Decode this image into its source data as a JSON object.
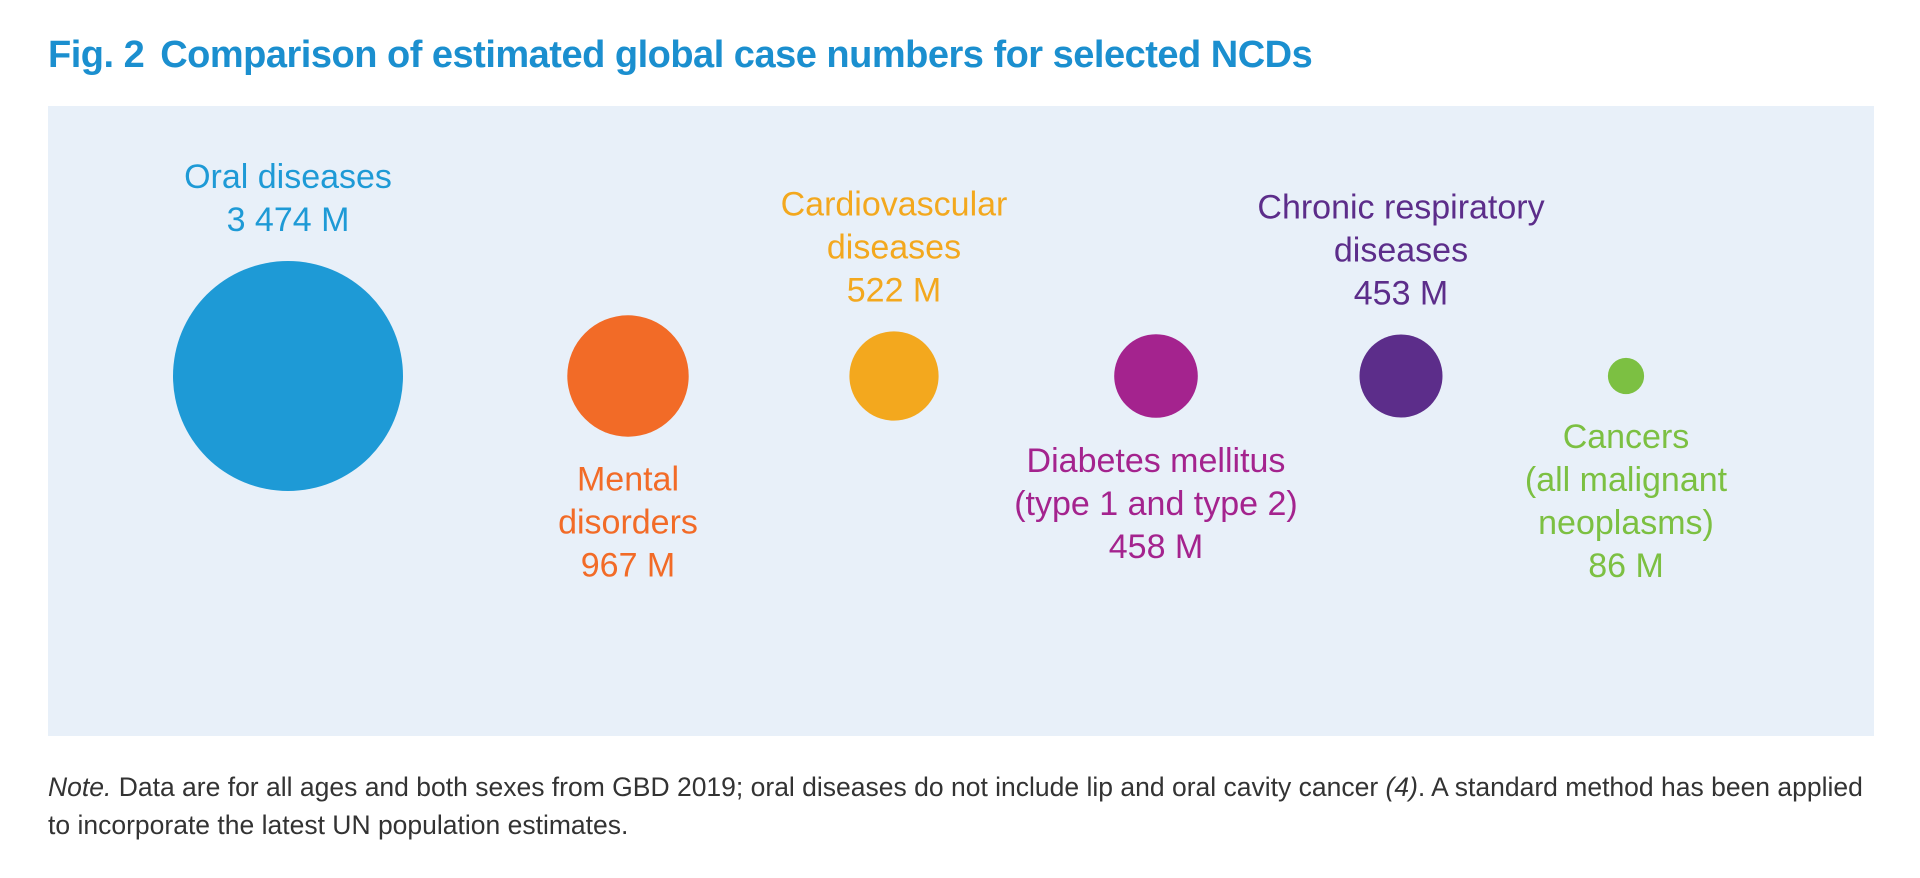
{
  "figure": {
    "number": "Fig. 2",
    "title": "Comparison of estimated global case numbers for selected NCDs"
  },
  "chart_data": {
    "type": "bubble",
    "title": "Comparison of estimated global case numbers for selected NCDs",
    "unit": "M",
    "categories": [
      "Oral diseases",
      "Mental disorders",
      "Cardiovascular diseases",
      "Diabetes mellitus (type 1 and type 2)",
      "Chronic respiratory diseases",
      "Cancers (all malignant neoplasms)"
    ],
    "values": [
      3474,
      967,
      522,
      458,
      453,
      86
    ],
    "value_labels": [
      "3 474 M",
      "967 M",
      "522 M",
      "458 M",
      "453 M",
      "86 M"
    ],
    "label_lines": [
      [
        "Oral diseases"
      ],
      [
        "Mental",
        "disorders"
      ],
      [
        "Cardiovascular",
        "diseases"
      ],
      [
        "Diabetes mellitus",
        "(type 1 and type 2)"
      ],
      [
        "Chronic respiratory",
        "diseases"
      ],
      [
        "Cancers",
        "(all malignant",
        "neoplasms)"
      ]
    ],
    "label_placement": [
      "above",
      "below",
      "above",
      "below",
      "above",
      "below"
    ],
    "colors": [
      "#1E9AD6",
      "#F26B27",
      "#F3A81E",
      "#A4238E",
      "#5C2D8A",
      "#7CC042"
    ]
  },
  "note": {
    "prefix": "Note.",
    "text_a": " Data are for all ages and both sexes from GBD 2019; oral diseases do not include lip and oral cavity cancer ",
    "ref": "(4)",
    "text_b": ". A standard method has been applied to incorporate the latest UN population estimates."
  }
}
